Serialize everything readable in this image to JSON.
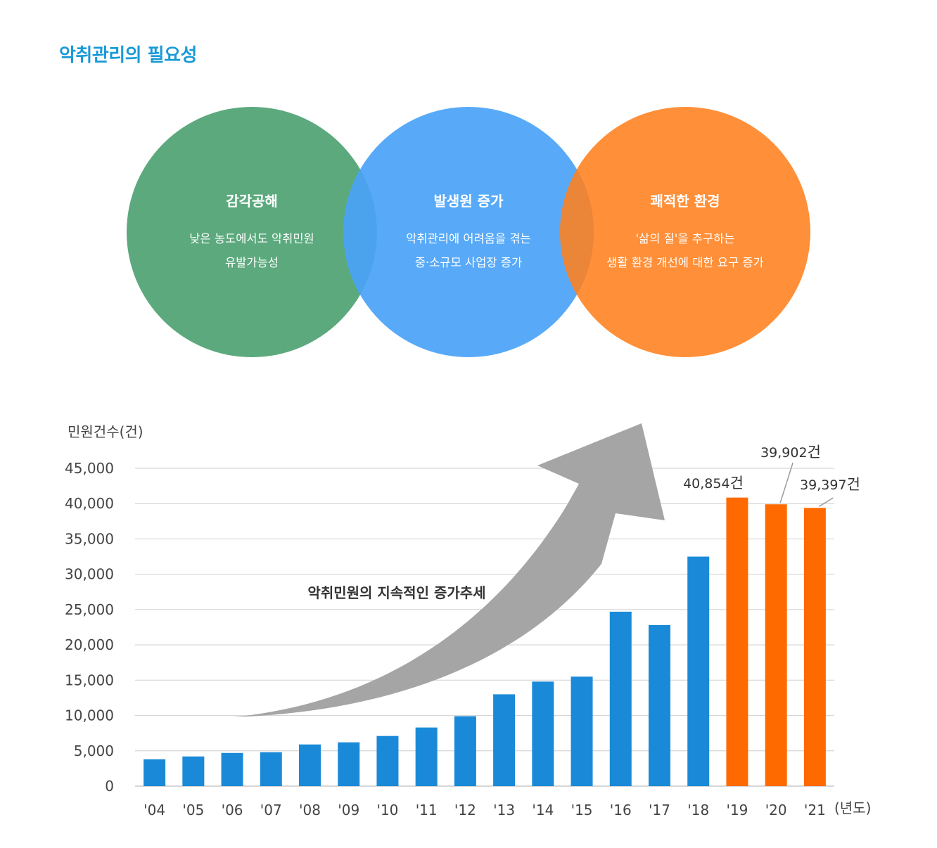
{
  "page_title": "악취관리의 필요성",
  "venn": [
    {
      "heading": "감각공해",
      "lines": [
        "낮은 농도에서도 악취민원",
        "유발가능성"
      ],
      "color": "#3f9a66"
    },
    {
      "heading": "발생원 증가",
      "lines": [
        "악취관리에 어려움을 겪는",
        "중·소규모 사업장 증가"
      ],
      "color": "#4aa3f7"
    },
    {
      "heading": "쾌적한 환경",
      "lines": [
        "'삶의 질'을 추구하는",
        "생활 환경 개선에 대한 요구 증가"
      ],
      "color": "#ff7f1c"
    }
  ],
  "chart_data": {
    "type": "bar",
    "title": "",
    "ylabel": "민원건수(건)",
    "xlabel": "(년도)",
    "ylim": [
      0,
      45000
    ],
    "yticks": [
      0,
      5000,
      10000,
      15000,
      20000,
      25000,
      30000,
      35000,
      40000,
      45000
    ],
    "ytick_labels": [
      "0",
      "5,000",
      "10,000",
      "15,000",
      "20,000",
      "25,000",
      "30,000",
      "35,000",
      "40,000",
      "45,000"
    ],
    "categories": [
      "'04",
      "'05",
      "'06",
      "'07",
      "'08",
      "'09",
      "'10",
      "'11",
      "'12",
      "'13",
      "'14",
      "'15",
      "'16",
      "'17",
      "'18",
      "'19",
      "'20",
      "'21"
    ],
    "values": [
      3800,
      4200,
      4700,
      4800,
      5900,
      6200,
      7100,
      8300,
      9900,
      13000,
      14800,
      15500,
      24700,
      22800,
      32500,
      40854,
      39902,
      39397
    ],
    "colors": [
      "#1a8ad8",
      "#1a8ad8",
      "#1a8ad8",
      "#1a8ad8",
      "#1a8ad8",
      "#1a8ad8",
      "#1a8ad8",
      "#1a8ad8",
      "#1a8ad8",
      "#1a8ad8",
      "#1a8ad8",
      "#1a8ad8",
      "#1a8ad8",
      "#1a8ad8",
      "#1a8ad8",
      "#ff6a00",
      "#ff6a00",
      "#ff6a00"
    ],
    "data_labels": [
      {
        "index": 15,
        "number": "40,854",
        "unit": "건"
      },
      {
        "index": 16,
        "number": "39,902",
        "unit": "건"
      },
      {
        "index": 17,
        "number": "39,397",
        "unit": "건"
      }
    ],
    "annotation": "악취민원의 지속적인 증가추세",
    "grid": true
  }
}
